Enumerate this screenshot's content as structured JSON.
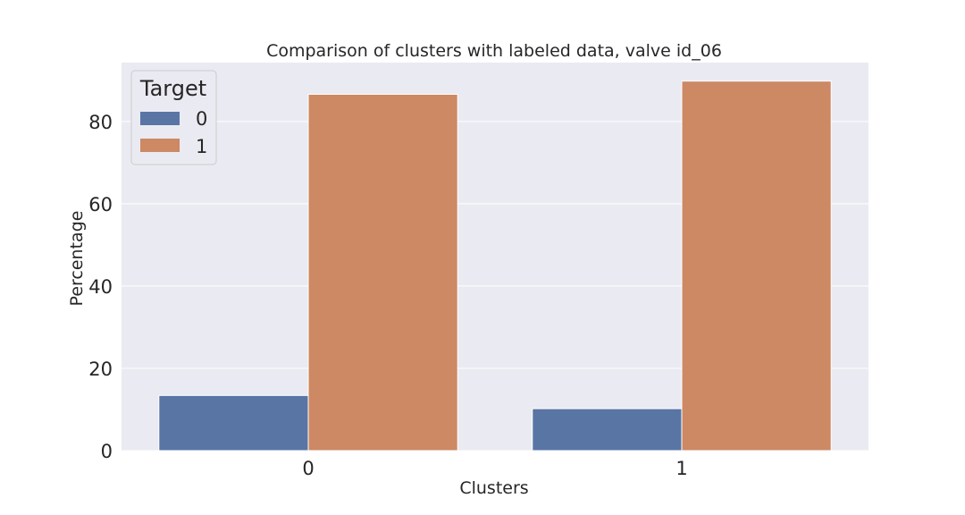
{
  "chart_data": {
    "type": "bar",
    "title": "Comparison of clusters with labeled data, valve id_06",
    "xlabel": "Clusters",
    "ylabel": "Percentage",
    "categories": [
      "0",
      "1"
    ],
    "series": [
      {
        "name": "0",
        "values": [
          13.4,
          10.2
        ],
        "color": "#5975a4"
      },
      {
        "name": "1",
        "values": [
          86.6,
          89.8
        ],
        "color": "#cc8963"
      }
    ],
    "ylim": [
      0,
      94.3
    ],
    "yticks": [
      "0",
      "20",
      "40",
      "60",
      "80"
    ],
    "legend": {
      "title": "Target",
      "placement": "top-left"
    },
    "grid": true,
    "background": "#eaeaf2"
  }
}
